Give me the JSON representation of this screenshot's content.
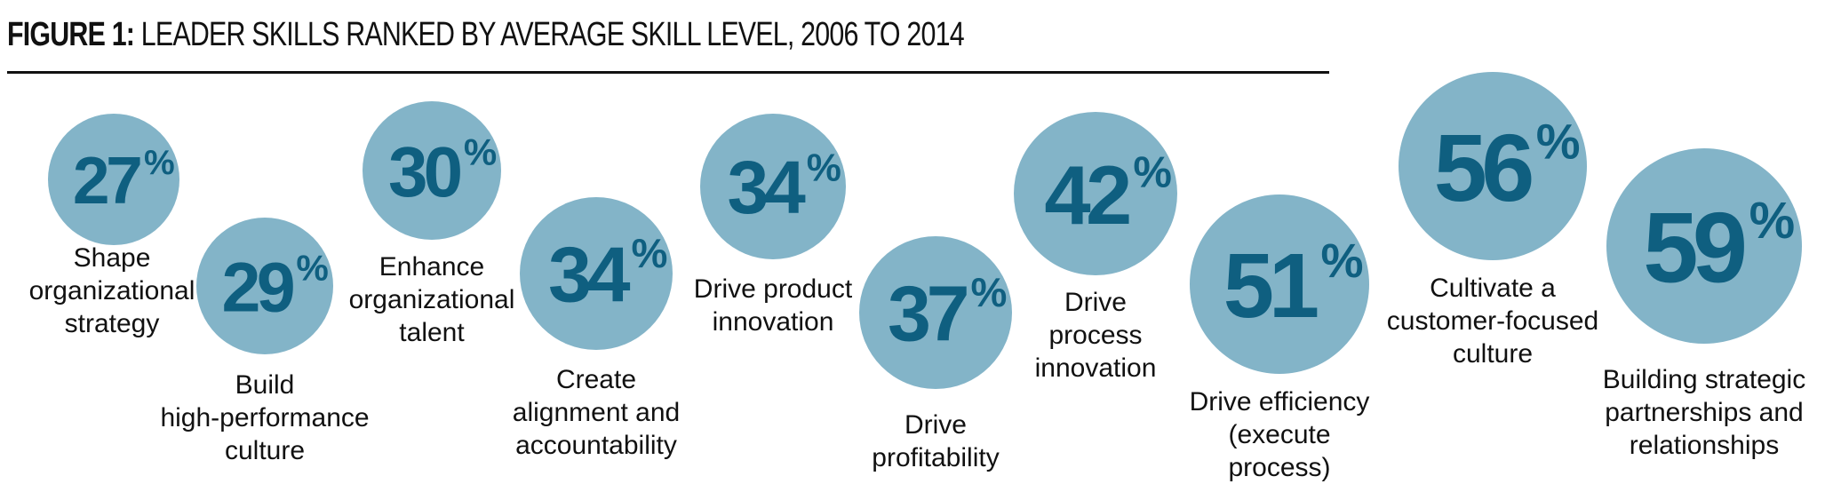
{
  "title": {
    "prefix": "FIGURE 1:",
    "text": "LEADER SKILLS RANKED BY AVERAGE SKILL LEVEL, 2006 TO 2014"
  },
  "chart_data": {
    "type": "bubble",
    "percent_symbol": "%",
    "colors": {
      "bubble": "#83b4c8",
      "value_text": "#0f5f80",
      "label_text": "#111111"
    },
    "categories": [
      "Shape organizational strategy",
      "Build high-performance culture",
      "Enhance organizational talent",
      "Create alignment and accountability",
      "Drive product innovation",
      "Drive profitability",
      "Drive process innovation",
      "Drive efficiency (execute process)",
      "Cultivate a customer-focused culture",
      "Building strategic partnerships and relationships"
    ],
    "values": [
      27,
      29,
      30,
      34,
      34,
      37,
      42,
      51,
      56,
      59
    ],
    "label_lines": [
      [
        "Shape",
        "organizational",
        "strategy"
      ],
      [
        "Build",
        "high-performance",
        "culture"
      ],
      [
        "Enhance",
        "organizational",
        "talent"
      ],
      [
        "Create",
        "alignment and",
        "accountability"
      ],
      [
        "Drive product",
        "innovation"
      ],
      [
        "Drive",
        "profitability"
      ],
      [
        "Drive",
        "process",
        "innovation"
      ],
      [
        "Drive efficiency",
        "(execute",
        "process)"
      ],
      [
        "Cultivate a",
        "customer-focused",
        "culture"
      ],
      [
        "Building strategic",
        "partnerships and",
        "relationships"
      ]
    ]
  }
}
